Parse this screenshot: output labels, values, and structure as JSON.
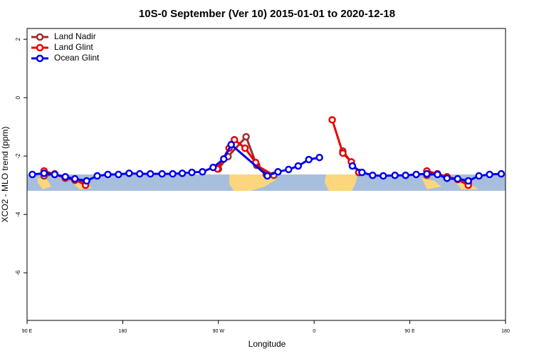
{
  "chart_data": {
    "type": "line",
    "title": "10S-0 September (Ver 10)   2015-01-01 to 2020-12-18",
    "xlabel": "Longitude",
    "ylabel": "XCO2 - MLO trend (ppm)",
    "xlim": [
      90,
      540
    ],
    "ylim": [
      -7.63,
      2.37
    ],
    "xticks": [
      {
        "value": 90,
        "label": "90 E"
      },
      180,
      {
        "value": 270,
        "label": "90 W"
      },
      {
        "value": 360,
        "label": "0"
      },
      {
        "value": 450,
        "label": "90 E"
      },
      {
        "value": 540,
        "label": "180"
      }
    ],
    "yticks": [
      2,
      0,
      -2,
      -4,
      -6
    ],
    "legend": "top-left",
    "series": [
      {
        "name": "Land Nadir",
        "color": "#a52a2a",
        "x": [
          106,
          116,
          126,
          135,
          145,
          null,
          270,
          279,
          296,
          306,
          322,
          null,
          387,
          402,
          null,
          466,
          476,
          485,
          495,
          505
        ],
        "values": [
          -2.68,
          -2.61,
          -2.76,
          -2.83,
          -2.93,
          null,
          -2.44,
          -2.02,
          -1.34,
          -2.32,
          -2.66,
          null,
          -1.83,
          -2.56,
          null,
          -2.66,
          -2.61,
          -2.76,
          -2.8,
          -2.93
        ]
      },
      {
        "name": "Land Glint",
        "color": "#ee0000",
        "x": [
          106,
          116,
          126,
          135,
          145,
          null,
          269,
          280,
          285,
          295,
          305,
          315,
          null,
          377,
          387,
          395,
          402,
          null,
          466,
          476,
          485,
          495,
          505
        ],
        "values": [
          -2.51,
          -2.63,
          -2.73,
          -2.8,
          -3.0,
          null,
          -2.44,
          -1.73,
          -1.44,
          -1.73,
          -2.22,
          -2.63,
          null,
          -0.76,
          -1.9,
          -2.2,
          -2.56,
          null,
          -2.51,
          -2.61,
          -2.71,
          -2.8,
          -3.0
        ]
      },
      {
        "name": "Ocean Glint",
        "color": "#0000ee",
        "x": [
          95,
          106,
          116,
          126,
          135,
          146,
          156,
          166,
          176,
          186,
          196,
          206,
          217,
          227,
          236,
          245,
          255,
          265,
          275,
          282,
          316,
          326,
          336,
          345,
          355,
          365,
          null,
          396,
          405,
          415,
          425,
          436,
          446,
          456,
          466,
          476,
          485,
          495,
          505,
          515,
          525,
          536
        ],
        "values": [
          -2.63,
          -2.59,
          -2.63,
          -2.71,
          -2.78,
          -2.85,
          -2.68,
          -2.63,
          -2.63,
          -2.59,
          -2.61,
          -2.61,
          -2.61,
          -2.61,
          -2.59,
          -2.56,
          -2.54,
          -2.39,
          -2.1,
          -1.61,
          -2.68,
          -2.54,
          -2.46,
          -2.34,
          -2.12,
          -2.05,
          null,
          -2.34,
          -2.56,
          -2.66,
          -2.68,
          -2.66,
          -2.66,
          -2.63,
          -2.61,
          -2.63,
          -2.76,
          -2.78,
          -2.85,
          -2.68,
          -2.63,
          -2.61
        ]
      }
    ]
  }
}
